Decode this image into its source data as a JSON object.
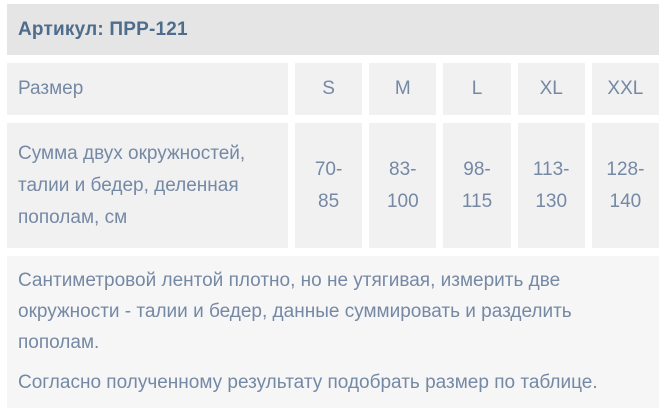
{
  "header": {
    "title": "Артикул: ПРР-121"
  },
  "table": {
    "size_row_label": "Размер",
    "sizes": [
      "S",
      "M",
      "L",
      "XL",
      "XXL"
    ],
    "measure_label": "Сумма двух окружностей,\nталии и бедер, деленная\nпополам, см",
    "values": [
      "70-\n85",
      "83-\n100",
      "98-\n115",
      "113-\n130",
      "128-\n140"
    ]
  },
  "instructions": {
    "paragraph_1": "Сантиметровой лентой плотно, но не утягивая, измерить две\nокружности - талии и бедер, данные суммировать и разделить\nпополам.",
    "paragraph_2": "Согласно полученному результату подобрать размер по таблице."
  },
  "colors": {
    "header_background": "#e5e5e6",
    "cell_background": "#f1f1f2",
    "info_background": "#f6f6f7",
    "title_text": "#4e6c8c",
    "body_text": "#7589a4",
    "gap": "#ffffff"
  }
}
